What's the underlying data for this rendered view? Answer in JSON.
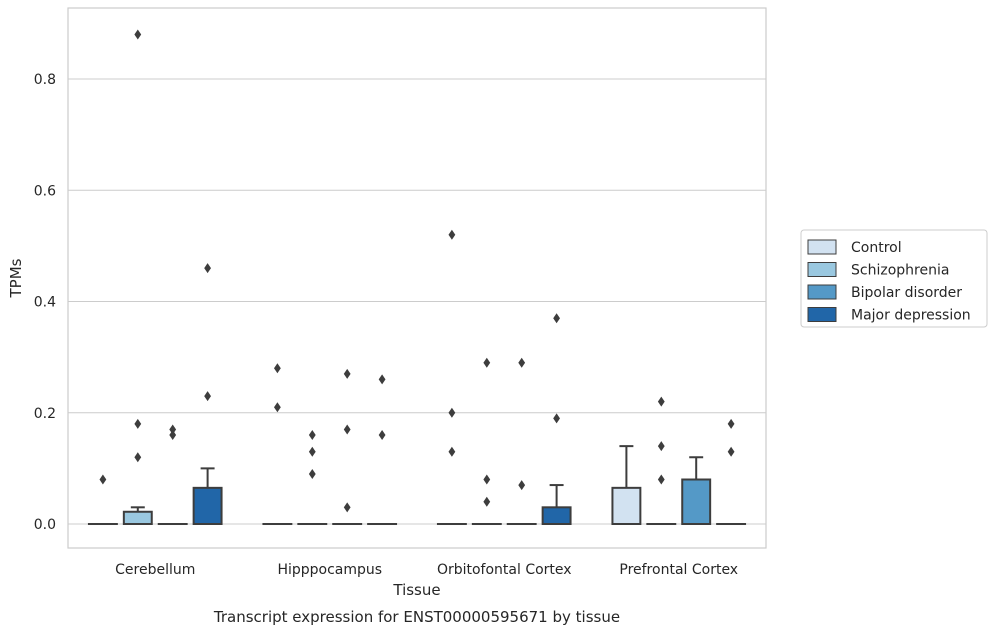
{
  "chart_data": {
    "type": "box",
    "caption": "Transcript expression for ENST00000595671 by tissue",
    "xlabel": "Tissue",
    "ylabel": "TPMs",
    "ylim": [
      -0.043,
      0.927
    ],
    "yticks": [
      "0.0",
      "0.2",
      "0.4",
      "0.6",
      "0.8"
    ],
    "grid": true,
    "legend_position": "right",
    "categories": [
      "Cerebellum",
      "Hipppocampus",
      "Orbitofontal Cortex",
      "Prefrontal Cortex"
    ],
    "series": [
      {
        "name": "Control",
        "color": "#d2e2f1",
        "boxes": [
          {
            "q1": 0,
            "median": 0,
            "q3": 0,
            "whisker_low": 0,
            "whisker_high": 0,
            "outliers": [
              0.08
            ]
          },
          {
            "q1": 0,
            "median": 0,
            "q3": 0,
            "whisker_low": 0,
            "whisker_high": 0,
            "outliers": [
              0.28,
              0.21
            ]
          },
          {
            "q1": 0,
            "median": 0,
            "q3": 0,
            "whisker_low": 0,
            "whisker_high": 0,
            "outliers": [
              0.52,
              0.2,
              0.13
            ]
          },
          {
            "q1": 0,
            "median": 0,
            "q3": 0.065,
            "whisker_low": 0,
            "whisker_high": 0.14,
            "outliers": []
          }
        ]
      },
      {
        "name": "Schizophrenia",
        "color": "#9ac8e0",
        "boxes": [
          {
            "q1": 0,
            "median": 0,
            "q3": 0.022,
            "whisker_low": 0,
            "whisker_high": 0.03,
            "outliers": [
              0.88,
              0.18,
              0.12
            ]
          },
          {
            "q1": 0,
            "median": 0,
            "q3": 0,
            "whisker_low": 0,
            "whisker_high": 0,
            "outliers": [
              0.16,
              0.13,
              0.09
            ]
          },
          {
            "q1": 0,
            "median": 0,
            "q3": 0,
            "whisker_low": 0,
            "whisker_high": 0,
            "outliers": [
              0.29,
              0.08,
              0.04
            ]
          },
          {
            "q1": 0,
            "median": 0,
            "q3": 0,
            "whisker_low": 0,
            "whisker_high": 0,
            "outliers": [
              0.22,
              0.14,
              0.08
            ]
          }
        ]
      },
      {
        "name": "Bipolar disorder",
        "color": "#5499c7",
        "boxes": [
          {
            "q1": 0,
            "median": 0,
            "q3": 0,
            "whisker_low": 0,
            "whisker_high": 0,
            "outliers": [
              0.17,
              0.16
            ]
          },
          {
            "q1": 0,
            "median": 0,
            "q3": 0,
            "whisker_low": 0,
            "whisker_high": 0,
            "outliers": [
              0.27,
              0.17,
              0.03
            ]
          },
          {
            "q1": 0,
            "median": 0,
            "q3": 0,
            "whisker_low": 0,
            "whisker_high": 0,
            "outliers": [
              0.29,
              0.07
            ]
          },
          {
            "q1": 0,
            "median": 0,
            "q3": 0.08,
            "whisker_low": 0,
            "whisker_high": 0.12,
            "outliers": []
          }
        ]
      },
      {
        "name": "Major depression",
        "color": "#2166a8",
        "boxes": [
          {
            "q1": 0,
            "median": 0,
            "q3": 0.065,
            "whisker_low": 0,
            "whisker_high": 0.1,
            "outliers": [
              0.46,
              0.23
            ]
          },
          {
            "q1": 0,
            "median": 0,
            "q3": 0,
            "whisker_low": 0,
            "whisker_high": 0,
            "outliers": [
              0.26,
              0.16
            ]
          },
          {
            "q1": 0,
            "median": 0,
            "q3": 0.03,
            "whisker_low": 0,
            "whisker_high": 0.07,
            "outliers": [
              0.37,
              0.19
            ]
          },
          {
            "q1": 0,
            "median": 0,
            "q3": 0,
            "whisker_low": 0,
            "whisker_high": 0,
            "outliers": [
              0.18,
              0.13
            ]
          }
        ]
      }
    ]
  }
}
